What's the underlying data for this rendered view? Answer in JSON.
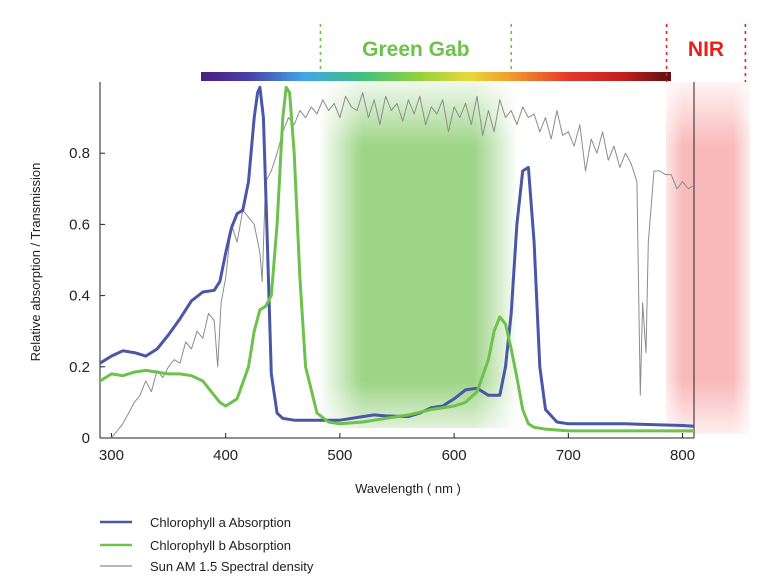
{
  "chart_data": {
    "type": "line",
    "xlabel": "Wavelength ( nm )",
    "ylabel": "Relative absorption / Transmission",
    "xlim": [
      290,
      810
    ],
    "ylim": [
      0,
      1.0
    ],
    "x_ticks": [
      "300",
      "400",
      "500",
      "600",
      "700",
      "800"
    ],
    "y_ticks": [
      "0",
      "0.2",
      "0.4",
      "0.6",
      "0.8"
    ],
    "legend_position": "bottom-left",
    "colors": {
      "chl_a": "#4a57a6",
      "chl_b": "#6cc24a",
      "sun": "#8c8c8c",
      "green_band": "#7ec660",
      "nir": "#e62020",
      "nir_band": "#f7a3a3"
    },
    "bands": {
      "green": {
        "label": "Green Gab",
        "start": 483,
        "end": 650
      },
      "nir": {
        "label": "NIR",
        "start": 786,
        "end": 855
      }
    },
    "series": [
      {
        "name": "Chlorophyll a Absorption",
        "x": [
          290,
          300,
          310,
          320,
          330,
          340,
          350,
          360,
          370,
          380,
          390,
          395,
          400,
          405,
          410,
          415,
          420,
          425,
          428,
          430,
          433,
          436,
          440,
          445,
          450,
          460,
          480,
          500,
          520,
          530,
          540,
          560,
          570,
          580,
          590,
          600,
          610,
          620,
          630,
          640,
          645,
          650,
          655,
          660,
          665,
          670,
          675,
          680,
          690,
          700,
          750,
          800,
          810
        ],
        "y": [
          0.21,
          0.23,
          0.245,
          0.24,
          0.23,
          0.25,
          0.29,
          0.335,
          0.385,
          0.41,
          0.415,
          0.44,
          0.52,
          0.59,
          0.63,
          0.64,
          0.72,
          0.9,
          0.97,
          0.985,
          0.9,
          0.6,
          0.18,
          0.07,
          0.055,
          0.05,
          0.05,
          0.05,
          0.06,
          0.065,
          0.062,
          0.06,
          0.07,
          0.085,
          0.09,
          0.11,
          0.135,
          0.14,
          0.12,
          0.12,
          0.2,
          0.35,
          0.6,
          0.75,
          0.76,
          0.55,
          0.2,
          0.08,
          0.045,
          0.04,
          0.04,
          0.035,
          0.033
        ]
      },
      {
        "name": "Chlorophyll b Absorption",
        "x": [
          290,
          300,
          310,
          320,
          330,
          340,
          350,
          360,
          370,
          380,
          385,
          390,
          395,
          400,
          410,
          420,
          425,
          430,
          435,
          440,
          445,
          450,
          453,
          456,
          460,
          465,
          470,
          480,
          490,
          500,
          520,
          540,
          560,
          580,
          600,
          610,
          620,
          630,
          635,
          640,
          645,
          650,
          655,
          660,
          665,
          670,
          680,
          700,
          750,
          800,
          810
        ],
        "y": [
          0.16,
          0.18,
          0.175,
          0.185,
          0.19,
          0.185,
          0.18,
          0.18,
          0.175,
          0.16,
          0.14,
          0.12,
          0.1,
          0.09,
          0.11,
          0.2,
          0.3,
          0.36,
          0.37,
          0.4,
          0.6,
          0.9,
          0.985,
          0.97,
          0.8,
          0.45,
          0.2,
          0.07,
          0.045,
          0.04,
          0.045,
          0.055,
          0.065,
          0.08,
          0.09,
          0.1,
          0.13,
          0.22,
          0.3,
          0.34,
          0.32,
          0.25,
          0.17,
          0.08,
          0.04,
          0.03,
          0.025,
          0.02,
          0.02,
          0.02,
          0.02
        ]
      },
      {
        "name": "Sun AM 1.5 Spectral density",
        "x": [
          300,
          305,
          310,
          315,
          320,
          325,
          330,
          335,
          340,
          345,
          350,
          355,
          360,
          365,
          370,
          375,
          380,
          385,
          390,
          393,
          396,
          400,
          405,
          410,
          415,
          420,
          425,
          430,
          432,
          435,
          440,
          445,
          450,
          455,
          460,
          465,
          470,
          475,
          480,
          485,
          490,
          495,
          500,
          505,
          510,
          515,
          520,
          525,
          530,
          535,
          540,
          545,
          550,
          555,
          560,
          565,
          570,
          575,
          580,
          585,
          590,
          595,
          600,
          605,
          610,
          615,
          620,
          625,
          630,
          635,
          640,
          645,
          650,
          655,
          660,
          665,
          670,
          675,
          680,
          685,
          690,
          695,
          700,
          705,
          710,
          715,
          720,
          725,
          730,
          735,
          740,
          745,
          750,
          755,
          760,
          763,
          765,
          768,
          770,
          775,
          780,
          785,
          790,
          795,
          800,
          805,
          810
        ],
        "y": [
          0.0,
          0.02,
          0.04,
          0.07,
          0.1,
          0.12,
          0.16,
          0.13,
          0.19,
          0.17,
          0.2,
          0.22,
          0.21,
          0.27,
          0.25,
          0.3,
          0.28,
          0.35,
          0.33,
          0.2,
          0.38,
          0.45,
          0.6,
          0.55,
          0.64,
          0.62,
          0.6,
          0.52,
          0.44,
          0.72,
          0.75,
          0.8,
          0.86,
          0.9,
          0.88,
          0.92,
          0.9,
          0.93,
          0.91,
          0.95,
          0.92,
          0.94,
          0.9,
          0.96,
          0.93,
          0.92,
          0.97,
          0.9,
          0.95,
          0.88,
          0.96,
          0.92,
          0.94,
          0.89,
          0.95,
          0.91,
          0.96,
          0.88,
          0.93,
          0.91,
          0.95,
          0.86,
          0.93,
          0.9,
          0.94,
          0.88,
          0.96,
          0.85,
          0.92,
          0.86,
          0.95,
          0.9,
          0.92,
          0.88,
          0.93,
          0.9,
          0.91,
          0.86,
          0.9,
          0.84,
          0.92,
          0.85,
          0.86,
          0.82,
          0.88,
          0.75,
          0.84,
          0.8,
          0.86,
          0.78,
          0.82,
          0.76,
          0.8,
          0.77,
          0.72,
          0.12,
          0.38,
          0.24,
          0.55,
          0.75,
          0.75,
          0.74,
          0.74,
          0.7,
          0.72,
          0.7,
          0.71
        ]
      }
    ],
    "spectrum_bar_stops": [
      {
        "offset": 0.0,
        "color": "#4b1d7e"
      },
      {
        "offset": 0.1,
        "color": "#4b3ea6"
      },
      {
        "offset": 0.22,
        "color": "#3fa7e8"
      },
      {
        "offset": 0.34,
        "color": "#3fbf7f"
      },
      {
        "offset": 0.46,
        "color": "#8fd23c"
      },
      {
        "offset": 0.57,
        "color": "#e8d83a"
      },
      {
        "offset": 0.66,
        "color": "#f29a2b"
      },
      {
        "offset": 0.78,
        "color": "#e8372a"
      },
      {
        "offset": 0.9,
        "color": "#c11e1e"
      },
      {
        "offset": 1.0,
        "color": "#5b1010"
      }
    ]
  }
}
